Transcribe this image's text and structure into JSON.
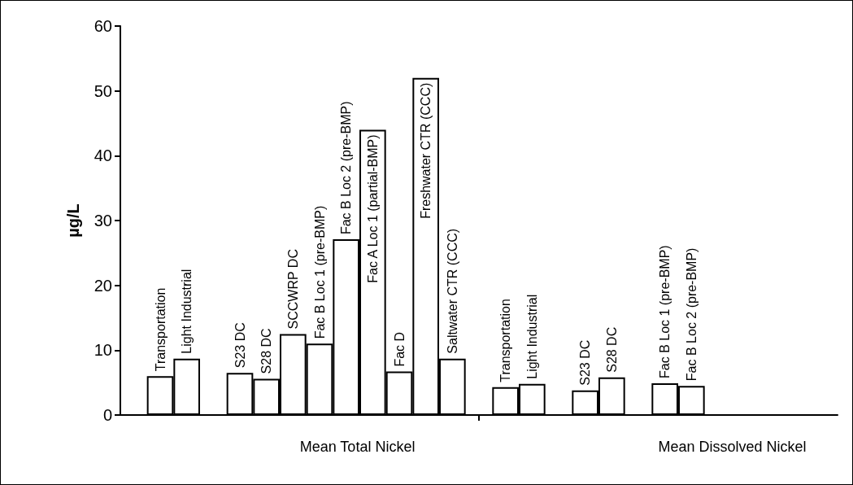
{
  "chart_data": {
    "type": "bar",
    "ylabel": "µg/L",
    "categories": [
      null,
      "Transportation",
      "Light Industrial",
      null,
      "S23 DC",
      "S28 DC",
      "SCCWRP DC",
      "Fac B Loc 1 (pre-BMP)",
      "Fac B Loc 2 (pre-BMP)",
      "Fac A Loc 1 (partial-BMP)",
      "Fac D",
      "Freshwater CTR (CCC)",
      "Saltwater CTR (CCC)",
      null,
      "Transportation",
      "Light Industrial",
      null,
      "S23 DC",
      "S28 DC",
      null,
      "Fac B Loc 1 (pre-BMP)",
      "Fac B Loc 2 (pre-BMP)",
      null,
      null,
      null,
      null,
      null
    ],
    "values": [
      null,
      6.0,
      8.7,
      null,
      6.5,
      5.6,
      12.5,
      11.0,
      27.1,
      44.0,
      6.7,
      52.0,
      8.7,
      null,
      4.3,
      4.8,
      null,
      3.8,
      5.8,
      null,
      4.9,
      4.5,
      null,
      null,
      null,
      null,
      null
    ],
    "color": "#ffffff",
    "ylim": [
      0,
      60
    ],
    "yticks": [
      0,
      10,
      20,
      30,
      40,
      50,
      60
    ],
    "grid": false,
    "annotations": [
      "Mean Total Nickel",
      "Mean Dissolved Nickel"
    ]
  }
}
